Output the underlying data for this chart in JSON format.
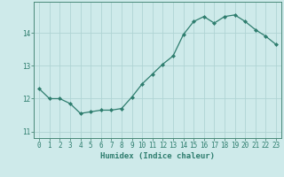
{
  "x": [
    0,
    1,
    2,
    3,
    4,
    5,
    6,
    7,
    8,
    9,
    10,
    11,
    12,
    13,
    14,
    15,
    16,
    17,
    18,
    19,
    20,
    21,
    22,
    23
  ],
  "y": [
    12.3,
    12.0,
    12.0,
    11.85,
    11.55,
    11.6,
    11.65,
    11.65,
    11.7,
    12.05,
    12.45,
    12.75,
    13.05,
    13.3,
    13.95,
    14.35,
    14.5,
    14.3,
    14.5,
    14.55,
    14.35,
    14.1,
    13.9,
    13.65
  ],
  "line_color": "#2e7d6e",
  "marker": "D",
  "marker_size": 2.0,
  "bg_color": "#ceeaea",
  "grid_color": "#afd4d4",
  "xlabel": "Humidex (Indice chaleur)",
  "xlim": [
    -0.5,
    23.5
  ],
  "ylim": [
    10.8,
    14.95
  ],
  "yticks": [
    11,
    12,
    13,
    14
  ],
  "xticks": [
    0,
    1,
    2,
    3,
    4,
    5,
    6,
    7,
    8,
    9,
    10,
    11,
    12,
    13,
    14,
    15,
    16,
    17,
    18,
    19,
    20,
    21,
    22,
    23
  ],
  "axis_color": "#4a8a7a",
  "tick_color": "#2e7d6e",
  "label_fontsize": 6.5,
  "tick_fontsize": 5.5,
  "linewidth": 0.9
}
